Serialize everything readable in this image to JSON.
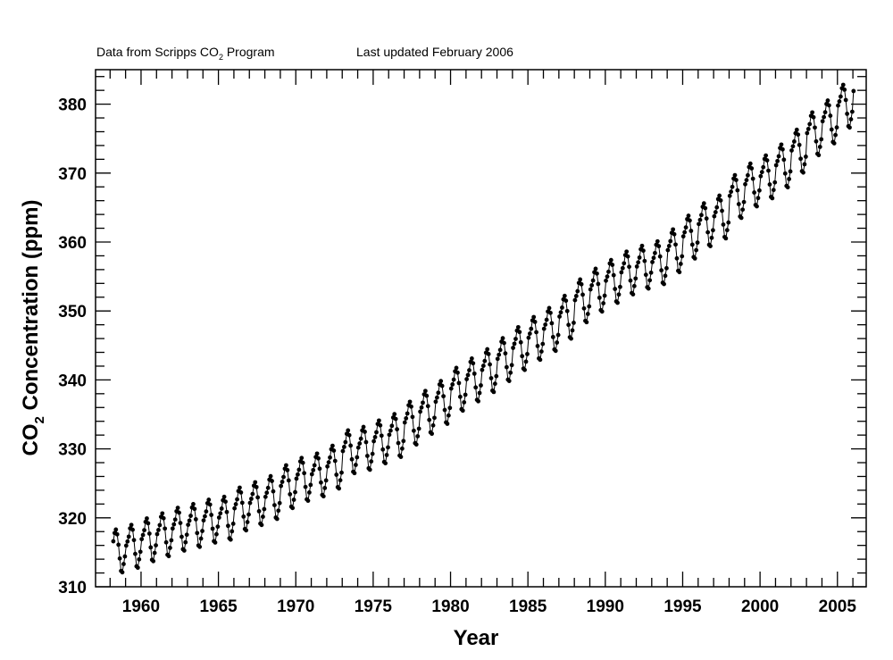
{
  "header": {
    "source_prefix": "Data from Scripps CO",
    "source_sub": "2",
    "source_suffix": " Program",
    "updated": "Last updated February 2006"
  },
  "chart_data": {
    "type": "line",
    "title": "",
    "xlabel": "Year",
    "ylabel_prefix": "CO",
    "ylabel_sub": "2",
    "ylabel_suffix": " Concentration (ppm)",
    "xlim": [
      1957.06,
      2006.86
    ],
    "ylim": [
      310,
      385
    ],
    "x_ticks": [
      1960,
      1965,
      1970,
      1975,
      1980,
      1985,
      1990,
      1995,
      2000,
      2005
    ],
    "y_ticks": [
      310,
      320,
      330,
      340,
      350,
      360,
      370,
      380
    ],
    "grid": false,
    "markers": "filled-circle",
    "color": "#000000",
    "first_month": "1958-03",
    "last_month": "2006-01",
    "annual_mean_ppm": {
      "1958": 315.3,
      "1959": 315.97,
      "1960": 316.91,
      "1961": 317.64,
      "1962": 318.45,
      "1963": 318.99,
      "1964": 319.62,
      "1965": 320.04,
      "1966": 321.38,
      "1967": 322.16,
      "1968": 323.04,
      "1969": 324.62,
      "1970": 325.68,
      "1971": 326.32,
      "1972": 327.45,
      "1973": 329.68,
      "1974": 330.18,
      "1975": 331.11,
      "1976": 332.04,
      "1977": 333.83,
      "1978": 335.4,
      "1979": 336.84,
      "1980": 338.75,
      "1981": 340.11,
      "1982": 341.45,
      "1983": 343.05,
      "1984": 344.65,
      "1985": 346.12,
      "1986": 347.42,
      "1987": 349.19,
      "1988": 351.57,
      "1989": 353.12,
      "1990": 354.39,
      "1991": 355.61,
      "1992": 356.45,
      "1993": 357.1,
      "1994": 358.83,
      "1995": 360.82,
      "1996": 362.61,
      "1997": 363.73,
      "1998": 366.7,
      "1999": 368.38,
      "2000": 369.55,
      "2001": 371.14,
      "2002": 373.28,
      "2003": 375.8,
      "2004": 377.52,
      "2005": 379.8,
      "2006": 381.9
    },
    "seasonal_cycle_ppm": [
      0.0,
      0.6,
      1.3,
      2.5,
      3.0,
      2.3,
      0.8,
      -1.2,
      -3.0,
      -3.2,
      -2.0,
      -0.9
    ]
  }
}
